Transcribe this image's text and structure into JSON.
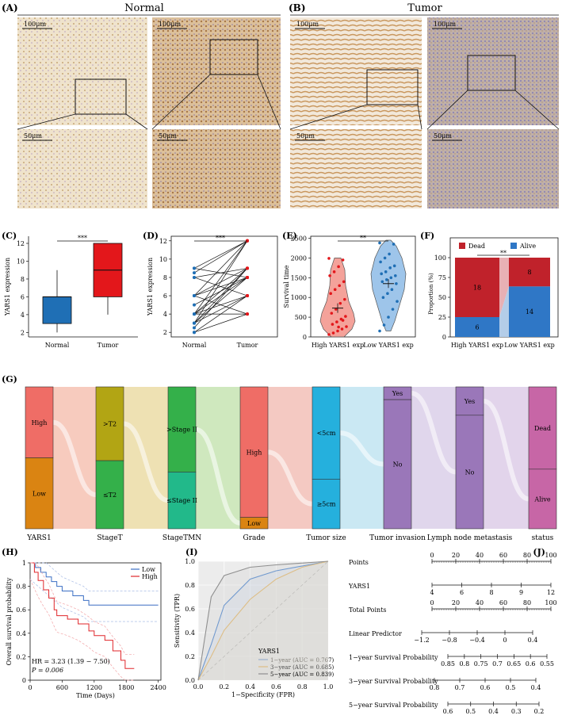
{
  "micrographs": {
    "panel_A_label": "(A)",
    "panel_B_label": "(B)",
    "normal_title": "Normal",
    "tumor_title": "Tumor",
    "scale_top": "100μm",
    "scale_bottom": "50μm"
  },
  "colors": {
    "normal_blue": "#1f6fb5",
    "tumor_red": "#e3171b",
    "dead_red": "#c0222b",
    "alive_blue": "#2f77c6",
    "high_red": "#ef6d66",
    "low_orange": "#da8412",
    "olive": "#b2a514",
    "green": "#34b04a",
    "teal": "#22b98a",
    "cyan": "#25b0dd",
    "purple": "#9a77b9",
    "pink": "#c766a6"
  },
  "chart_data": [
    {
      "panel": "(C)",
      "type": "box",
      "categories": [
        "Normal",
        "Tumor"
      ],
      "series": [
        {
          "min": 2,
          "q1": 3,
          "median": 6,
          "q3": 6,
          "max": 9
        },
        {
          "min": 4,
          "q1": 6,
          "median": 9,
          "q3": 12,
          "max": 12
        }
      ],
      "ylabel": "YARS1 expression",
      "ylim": [
        1.5,
        12.8
      ],
      "yticks": [
        2,
        4,
        6,
        8,
        10,
        12
      ],
      "significance": "***"
    },
    {
      "panel": "(D)",
      "type": "line",
      "categories": [
        "Normal",
        "Tumor"
      ],
      "pairs": [
        [
          2,
          4
        ],
        [
          2,
          6
        ],
        [
          2.5,
          9
        ],
        [
          3,
          6
        ],
        [
          3,
          8
        ],
        [
          3,
          12
        ],
        [
          4,
          6
        ],
        [
          4,
          8
        ],
        [
          4,
          9
        ],
        [
          4,
          4
        ],
        [
          5,
          8
        ],
        [
          6,
          9
        ],
        [
          6,
          12
        ],
        [
          6,
          8
        ],
        [
          6,
          4
        ],
        [
          8,
          9
        ],
        [
          8,
          6
        ],
        [
          8.5,
          12
        ],
        [
          9,
          8
        ],
        [
          9,
          12
        ],
        [
          4,
          12
        ],
        [
          3,
          9
        ]
      ],
      "ylabel": "YARS1 expression",
      "ylim": [
        1.5,
        12.5
      ],
      "yticks": [
        2,
        4,
        6,
        8,
        10,
        12
      ],
      "significance": "***"
    },
    {
      "panel": "(E)",
      "type": "scatter",
      "categories": [
        "High YARS1 exp",
        "Low YARS1 exp"
      ],
      "series": [
        {
          "name": "High YARS1 exp",
          "mean": 730,
          "sem": 120,
          "values": [
            1990,
            1950,
            1780,
            1650,
            1550,
            1400,
            1300,
            1200,
            1100,
            950,
            850,
            700,
            600,
            520,
            450,
            380,
            320,
            260,
            200,
            150,
            100,
            60,
            420,
            250
          ]
        },
        {
          "name": "Low YARS1 exp",
          "mean": 1350,
          "sem": 110,
          "values": [
            2380,
            2350,
            2100,
            2000,
            1900,
            1800,
            1750,
            1650,
            1600,
            1550,
            1500,
            1450,
            1400,
            1350,
            1200,
            1100,
            1000,
            900,
            700,
            500,
            300,
            150
          ]
        }
      ],
      "ylabel": "Survival time",
      "ylim": [
        0,
        2550
      ],
      "yticks": [
        0,
        500,
        1000,
        1500,
        2000,
        2500
      ],
      "significance": "**"
    },
    {
      "panel": "(F)",
      "type": "bar",
      "categories": [
        "High YARS1 exp",
        "Low YARS1 exp"
      ],
      "series": [
        {
          "name": "Dead",
          "values": [
            18,
            8
          ]
        },
        {
          "name": "Alive",
          "values": [
            6,
            14
          ]
        }
      ],
      "ylabel": "Proportion (%)",
      "ylim": [
        0,
        100
      ],
      "yticks": [
        0,
        25,
        50,
        75,
        100
      ],
      "significance": "**"
    },
    {
      "panel": "(G)",
      "type": "sankey",
      "axes": [
        {
          "label": "YARS1",
          "groups": [
            {
              "name": "High",
              "frac": 0.5
            },
            {
              "name": "Low",
              "frac": 0.5
            }
          ]
        },
        {
          "label": "StageT",
          "groups": [
            {
              "name": ">T2",
              "frac": 0.52
            },
            {
              "name": "≤T2",
              "frac": 0.48
            }
          ]
        },
        {
          "label": "StageTMN",
          "groups": [
            {
              "name": ">Stage II",
              "frac": 0.6
            },
            {
              "name": "≤Stage II",
              "frac": 0.4
            }
          ]
        },
        {
          "label": "Grade",
          "groups": [
            {
              "name": "High",
              "frac": 0.92
            },
            {
              "name": "Low",
              "frac": 0.08
            }
          ]
        },
        {
          "label": "Tumor size",
          "groups": [
            {
              "name": "<5cm",
              "frac": 0.65
            },
            {
              "name": "≥5cm",
              "frac": 0.35
            }
          ]
        },
        {
          "label": "Tumor invasion",
          "groups": [
            {
              "name": "Yes",
              "frac": 0.09
            },
            {
              "name": "No",
              "frac": 0.91
            }
          ]
        },
        {
          "label": "Lymph node metastasis",
          "groups": [
            {
              "name": "Yes",
              "frac": 0.2
            },
            {
              "name": "No",
              "frac": 0.8
            }
          ]
        },
        {
          "label": "status",
          "groups": [
            {
              "name": "Dead",
              "frac": 0.58
            },
            {
              "name": "Alive",
              "frac": 0.42
            }
          ]
        }
      ]
    },
    {
      "panel": "(H)",
      "type": "line",
      "series": [
        {
          "name": "Low",
          "points": [
            [
              0,
              1
            ],
            [
              100,
              0.96
            ],
            [
              200,
              0.92
            ],
            [
              300,
              0.88
            ],
            [
              400,
              0.84
            ],
            [
              500,
              0.8
            ],
            [
              600,
              0.76
            ],
            [
              800,
              0.72
            ],
            [
              1000,
              0.68
            ],
            [
              1100,
              0.64
            ],
            [
              2400,
              0.64
            ]
          ]
        },
        {
          "name": "High",
          "points": [
            [
              0,
              1
            ],
            [
              80,
              0.92
            ],
            [
              150,
              0.85
            ],
            [
              250,
              0.77
            ],
            [
              350,
              0.7
            ],
            [
              450,
              0.6
            ],
            [
              500,
              0.55
            ],
            [
              700,
              0.52
            ],
            [
              900,
              0.48
            ],
            [
              1100,
              0.42
            ],
            [
              1200,
              0.38
            ],
            [
              1400,
              0.34
            ],
            [
              1550,
              0.25
            ],
            [
              1700,
              0.17
            ],
            [
              1780,
              0.1
            ],
            [
              1950,
              0.1
            ]
          ]
        }
      ],
      "xlabel": "Time (Days)",
      "ylabel": "Overall survival probability",
      "xlim": [
        0,
        2450
      ],
      "ylim": [
        0,
        1
      ],
      "xticks": [
        0,
        600,
        1200,
        1800,
        2400
      ],
      "yticks": [
        0.0,
        0.2,
        0.4,
        0.6,
        0.8,
        1.0
      ],
      "annotations": [
        "HR = 3.23 (1.39 − 7.50)",
        "P = 0.006"
      ]
    },
    {
      "panel": "(I)",
      "type": "line",
      "series": [
        {
          "name": "1−year (AUC = 0.767)",
          "points": [
            [
              0,
              0
            ],
            [
              0.1,
              0.3
            ],
            [
              0.2,
              0.63
            ],
            [
              0.4,
              0.85
            ],
            [
              0.6,
              0.92
            ],
            [
              1,
              1
            ]
          ]
        },
        {
          "name": "3−year (AUC = 0.685)",
          "points": [
            [
              0,
              0
            ],
            [
              0.1,
              0.2
            ],
            [
              0.2,
              0.42
            ],
            [
              0.4,
              0.68
            ],
            [
              0.6,
              0.85
            ],
            [
              0.8,
              0.95
            ],
            [
              1,
              1
            ]
          ]
        },
        {
          "name": "5−year (AUC = 0.839)",
          "points": [
            [
              0,
              0
            ],
            [
              0.1,
              0.7
            ],
            [
              0.2,
              0.88
            ],
            [
              0.4,
              0.95
            ],
            [
              0.6,
              0.97
            ],
            [
              1,
              1
            ]
          ]
        }
      ],
      "legend_title": "YARS1",
      "xlabel": "1−Specificity (FPR)",
      "ylabel": "Sensitivity (TPR)",
      "xlim": [
        0,
        1
      ],
      "ylim": [
        0,
        1
      ],
      "xticks": [
        0.0,
        0.2,
        0.4,
        0.6,
        0.8,
        1.0
      ],
      "yticks": [
        0.0,
        0.2,
        0.4,
        0.6,
        0.8,
        1.0
      ]
    },
    {
      "panel": "(J)",
      "type": "nomogram",
      "rows": [
        {
          "label": "Points",
          "ticks": [
            "0",
            "20",
            "40",
            "60",
            "80",
            "100"
          ]
        },
        {
          "label": "YARS1",
          "ticks": [
            "4",
            "6",
            "8",
            "9",
            "12"
          ]
        },
        {
          "label": "Total Points",
          "ticks": [
            "0",
            "20",
            "40",
            "60",
            "80",
            "100"
          ]
        },
        {
          "label": "Linear Predictor",
          "ticks": [
            "−1.2",
            "−0.8",
            "−0.4",
            "0",
            "0.4"
          ]
        },
        {
          "label": "1−year Survival Probability",
          "ticks": [
            "0.85",
            "0.8",
            "0.75",
            "0.7",
            "0.65",
            "0.6",
            "0.55"
          ]
        },
        {
          "label": "3−year Survival Probability",
          "ticks": [
            "0.8",
            "0.7",
            "0.6",
            "0.5",
            "0.4"
          ]
        },
        {
          "label": "5−year Survival Probability",
          "ticks": [
            "0.6",
            "0.5",
            "0.4",
            "0.3",
            "0.2"
          ]
        }
      ]
    }
  ]
}
